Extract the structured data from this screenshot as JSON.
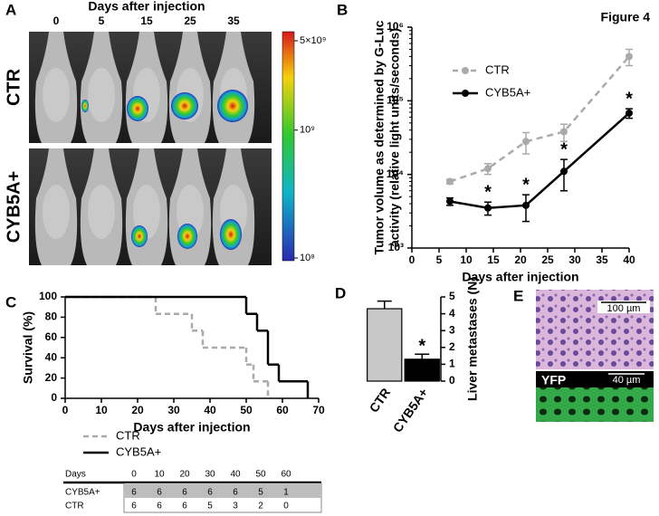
{
  "figure_label": "Figure 4",
  "panel_a": {
    "letter": "A",
    "title": "Days after injection",
    "days": [
      0,
      5,
      15,
      25,
      35
    ],
    "groups": [
      "CTR",
      "CYB5A+"
    ],
    "colorbar_ticks": [
      {
        "value": 5000000000,
        "label": "5×10⁹"
      },
      {
        "value": 1000000000,
        "label": "10⁹"
      },
      {
        "value": 100000000,
        "label": "10⁸"
      }
    ]
  },
  "chart_data": [
    {
      "type": "line",
      "panel": "B",
      "y_label": [
        "Tumor volume as determined by G-Luc",
        "activity (relative light units/seconds)"
      ],
      "x_label": "Days after injection",
      "log_y": true,
      "legend": "upper left",
      "x": [
        7,
        14,
        21,
        28,
        40
      ],
      "series": [
        {
          "name": "CTR",
          "color": "#aaaaaa",
          "dashed": true,
          "values": [
            8000,
            12000,
            28000,
            38000,
            400000
          ],
          "errors": [
            600,
            2000,
            9000,
            10000,
            100000
          ]
        },
        {
          "name": "CYB5A+",
          "color": "#000000",
          "dashed": false,
          "values": [
            4300,
            3500,
            3800,
            11000,
            68000
          ],
          "errors": [
            500,
            700,
            1500,
            5000,
            10000
          ]
        }
      ],
      "annotations": [
        {
          "x": 14,
          "text": "*"
        },
        {
          "x": 21,
          "text": "*"
        },
        {
          "x": 28,
          "text": "*"
        },
        {
          "x": 40,
          "text": "*"
        }
      ],
      "xlim": [
        0,
        40
      ],
      "xticks": [
        0,
        5,
        10,
        15,
        20,
        25,
        30,
        35,
        40
      ],
      "ylim": [
        1000,
        1000000
      ],
      "yticks": [
        {
          "value": 1000,
          "label": "10³"
        },
        {
          "value": 10000,
          "label": "10⁴"
        },
        {
          "value": 100000,
          "label": "10⁵"
        },
        {
          "value": 1000000,
          "label": "10⁶"
        }
      ]
    },
    {
      "type": "step",
      "panel": "C",
      "y_label": "Survival (%)",
      "x_label": "Days after injection",
      "legend": "lower left",
      "series": [
        {
          "name": "CTR",
          "color": "#aaaaaa",
          "dashed": true,
          "x": [
            0,
            25,
            35,
            38,
            50,
            52,
            56
          ],
          "values": [
            100,
            83.3,
            66.7,
            50,
            33.3,
            16.7,
            0
          ]
        },
        {
          "name": "CYB5A+",
          "color": "#000000",
          "dashed": false,
          "x": [
            0,
            50,
            53,
            56,
            59,
            67
          ],
          "values": [
            100,
            83.3,
            66.7,
            33.3,
            16.7,
            0
          ]
        }
      ],
      "xlim": [
        0,
        70
      ],
      "xticks": [
        0,
        10,
        20,
        30,
        40,
        50,
        60,
        70
      ],
      "ylim": [
        0,
        100
      ],
      "yticks": [
        0,
        20,
        40,
        60,
        80,
        100
      ]
    },
    {
      "type": "bar",
      "panel": "D",
      "y_label": "Liver metastases (N)",
      "categories": [
        "CTR",
        "CYB5A+"
      ],
      "values": [
        4.3,
        1.3
      ],
      "errors": [
        0.45,
        0.3
      ],
      "colors": [
        "#c8c8c8",
        "#000000"
      ],
      "annotations": [
        {
          "x": "CYB5A+",
          "text": "*"
        }
      ],
      "ylim": [
        0,
        5
      ],
      "yticks": [
        0,
        1,
        2,
        3,
        4,
        5
      ]
    }
  ],
  "table": {
    "header": [
      "Days",
      0,
      10,
      20,
      30,
      40,
      50,
      60
    ],
    "rows": [
      [
        "CYB5A+",
        6,
        6,
        6,
        6,
        6,
        5,
        1
      ],
      [
        "CTR",
        6,
        6,
        6,
        5,
        3,
        2,
        0
      ]
    ]
  },
  "panel_e": {
    "letter": "E",
    "scale_top": "100 µm",
    "scale_bottom": "40 µm",
    "label": "YFP"
  }
}
